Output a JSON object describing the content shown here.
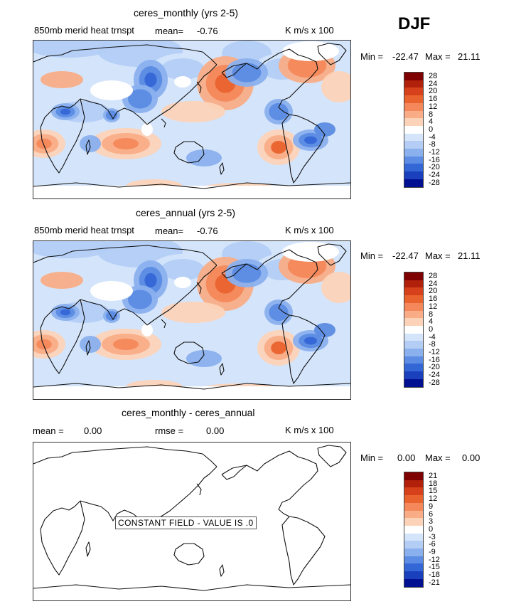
{
  "season": "DJF",
  "units_color_scale": "red-white-blue diverging",
  "panels": [
    {
      "id": "monthly",
      "title": "ceres_monthly (yrs 2-5)",
      "variable": "850mb merid heat trnspt",
      "mean_label": "mean=",
      "mean_value": "-0.76",
      "units": "K m/s x 100",
      "min_label": "Min =",
      "min_value": "-22.47",
      "max_label": "Max =",
      "max_value": "21.11",
      "levels": [
        "28",
        "24",
        "20",
        "16",
        "12",
        "8",
        "4",
        "0",
        "-4",
        "-8",
        "-12",
        "-16",
        "-20",
        "-24",
        "-28"
      ]
    },
    {
      "id": "annual",
      "title": "ceres_annual (yrs 2-5)",
      "variable": "850mb merid heat trnspt",
      "mean_label": "mean=",
      "mean_value": "-0.76",
      "units": "K m/s x 100",
      "min_label": "Min =",
      "min_value": "-22.47",
      "max_label": "Max =",
      "max_value": "21.11",
      "levels": [
        "28",
        "24",
        "20",
        "16",
        "12",
        "8",
        "4",
        "0",
        "-4",
        "-8",
        "-12",
        "-16",
        "-20",
        "-24",
        "-28"
      ]
    },
    {
      "id": "difference",
      "title": "ceres_monthly - ceres_annual",
      "mean_label": "mean =",
      "mean_value": "0.00",
      "rmse_label": "rmse =",
      "rmse_value": "0.00",
      "units": "K m/s x 100",
      "min_label": "Min =",
      "min_value": "0.00",
      "max_label": "Max =",
      "max_value": "0.00",
      "notice": "CONSTANT FIELD - VALUE IS .0",
      "levels": [
        "21",
        "18",
        "15",
        "12",
        "9",
        "6",
        "3",
        "0",
        "-3",
        "-6",
        "-9",
        "-12",
        "-15",
        "-18",
        "-21"
      ]
    }
  ],
  "colors": {
    "scale": [
      "#7f0000",
      "#b0200a",
      "#d6401a",
      "#e9632f",
      "#f4885a",
      "#f9ad87",
      "#fcd3b8",
      "#ffffff",
      "#d4e5fb",
      "#b3cdf5",
      "#8ab0ee",
      "#5c8ce3",
      "#3467d6",
      "#1a40bd",
      "#001090"
    ]
  }
}
